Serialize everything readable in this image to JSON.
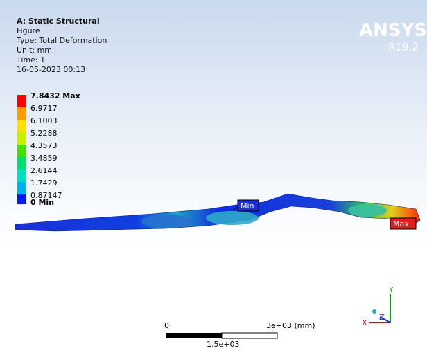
{
  "header": {
    "title": "A: Static Structural",
    "lines": [
      "Figure",
      "Type: Total Deformation",
      "Unit: mm",
      "Time: 1",
      "16-05-2023 00:13"
    ]
  },
  "logo": {
    "name": "ANSYS",
    "version": "R19.2"
  },
  "legend": {
    "labels": [
      "7.8432 Max",
      "6.9717",
      "6.1003",
      "5.2288",
      "4.3573",
      "3.4859",
      "2.6144",
      "1.7429",
      "0.87147",
      "0 Min"
    ]
  },
  "probes": {
    "min": "Min",
    "max": "Max"
  },
  "scale_bar": {
    "left": "0",
    "right": "3e+03 (mm)",
    "middle": "1.5e+03"
  },
  "triad": {
    "x": "X",
    "y": "Y",
    "z": "Z"
  }
}
